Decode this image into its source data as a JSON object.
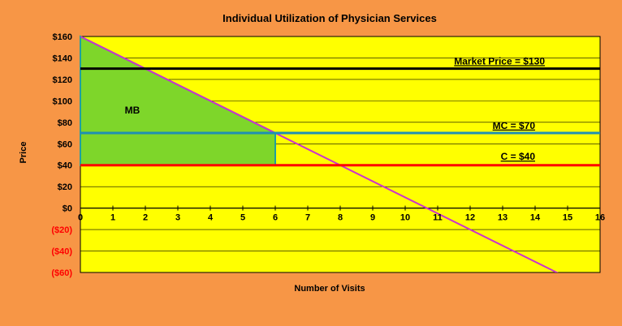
{
  "chart_data": {
    "type": "line",
    "title": "Individual Utilization of Physician Services",
    "xlabel": "Number of Visits",
    "ylabel": "Price",
    "xlim": [
      0,
      16
    ],
    "ylim": [
      -60,
      160
    ],
    "x_ticks": [
      0,
      1,
      2,
      3,
      4,
      5,
      6,
      7,
      8,
      9,
      10,
      11,
      12,
      13,
      14,
      15,
      16
    ],
    "x_tick_labels": [
      "0",
      "1",
      "2",
      "3",
      "4",
      "5",
      "6",
      "7",
      "8",
      "9",
      "10",
      "11",
      "12",
      "13",
      "14",
      "15",
      "16"
    ],
    "y_ticks": [
      160,
      140,
      120,
      100,
      80,
      60,
      40,
      20,
      0,
      -20,
      -40,
      -60
    ],
    "y_tick_labels": [
      "$160",
      "$140",
      "$120",
      "$100",
      "$80",
      "$60",
      "$40",
      "$20",
      "$0",
      "($20)",
      "($40)",
      "($60)"
    ],
    "negative_tick_color": "#FF0000",
    "grid": true,
    "colors": {
      "background": "#F79646",
      "plot_area": "#FFFF00",
      "demand": "#CC33CC",
      "market_price": "#000000",
      "mc": "#1F8FB3",
      "c": "#FF0000",
      "mb_fill": "#7ED62A",
      "mb_edge": "#1F9F9F"
    },
    "series": [
      {
        "key": "demand",
        "x": [
          0,
          16
        ],
        "y": [
          160,
          -80
        ]
      },
      {
        "key": "market_price",
        "x": [
          0,
          16
        ],
        "y": [
          130,
          130
        ]
      },
      {
        "key": "mc",
        "x": [
          0,
          16
        ],
        "y": [
          70,
          70
        ]
      },
      {
        "key": "c",
        "x": [
          0,
          16
        ],
        "y": [
          40,
          40
        ]
      }
    ],
    "annotations": [
      {
        "text": "Market Price = $130",
        "x": 14.3,
        "y": 134,
        "anchor": "end",
        "underline": true
      },
      {
        "text": "MC = $70",
        "x": 14.0,
        "y": 74,
        "anchor": "end",
        "underline": true
      },
      {
        "text": "C = $40",
        "x": 14.0,
        "y": 45,
        "anchor": "end",
        "underline": true
      },
      {
        "text": "MB",
        "x": 1.6,
        "y": 88,
        "anchor": "middle",
        "underline": false
      }
    ],
    "mb_region": {
      "label": "MB",
      "points": [
        [
          0,
          160
        ],
        [
          6,
          70
        ],
        [
          6,
          40
        ],
        [
          0,
          40
        ]
      ]
    }
  }
}
